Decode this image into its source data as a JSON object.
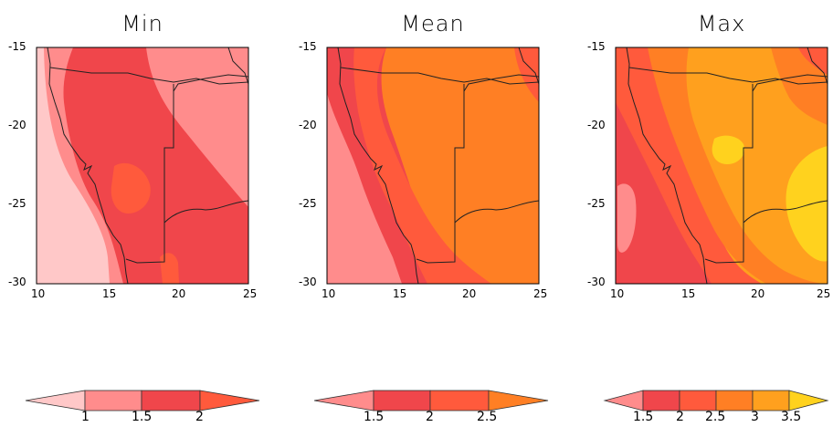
{
  "panels": [
    {
      "title": "Min",
      "xticks": [
        "10",
        "15",
        "20",
        "25"
      ],
      "yticks": [
        "-15",
        "-20",
        "-25",
        "-30"
      ],
      "colorbar": {
        "labels": [
          "1",
          "1.5",
          "2"
        ],
        "colors": [
          "#ffc8c8",
          "#ff8c8c",
          "#f0464b",
          "#ff5a3c"
        ]
      }
    },
    {
      "title": "Mean",
      "xticks": [
        "10",
        "15",
        "20",
        "25"
      ],
      "yticks": [
        "-15",
        "-20",
        "-25",
        "-30"
      ],
      "colorbar": {
        "labels": [
          "1.5",
          "2",
          "2.5"
        ],
        "colors": [
          "#ff8c8c",
          "#f0464b",
          "#ff5a3c",
          "#ff7f24"
        ]
      }
    },
    {
      "title": "Max",
      "xticks": [
        "10",
        "15",
        "20",
        "25"
      ],
      "yticks": [
        "-15",
        "-20",
        "-25",
        "-30"
      ],
      "colorbar": {
        "labels": [
          "1.5",
          "2",
          "2.5",
          "3",
          "3.5"
        ],
        "colors": [
          "#ff8c8c",
          "#f0464b",
          "#ff5a3c",
          "#ff7f24",
          "#ffa01e",
          "#ffd21e"
        ]
      }
    }
  ],
  "palette": {
    "light_pink": "#ffc8c8",
    "pink": "#ff8c8c",
    "red": "#f0464b",
    "red_orange": "#ff5a3c",
    "orange": "#ff7f24",
    "light_orange": "#ffa01e",
    "yellow": "#ffd21e"
  }
}
